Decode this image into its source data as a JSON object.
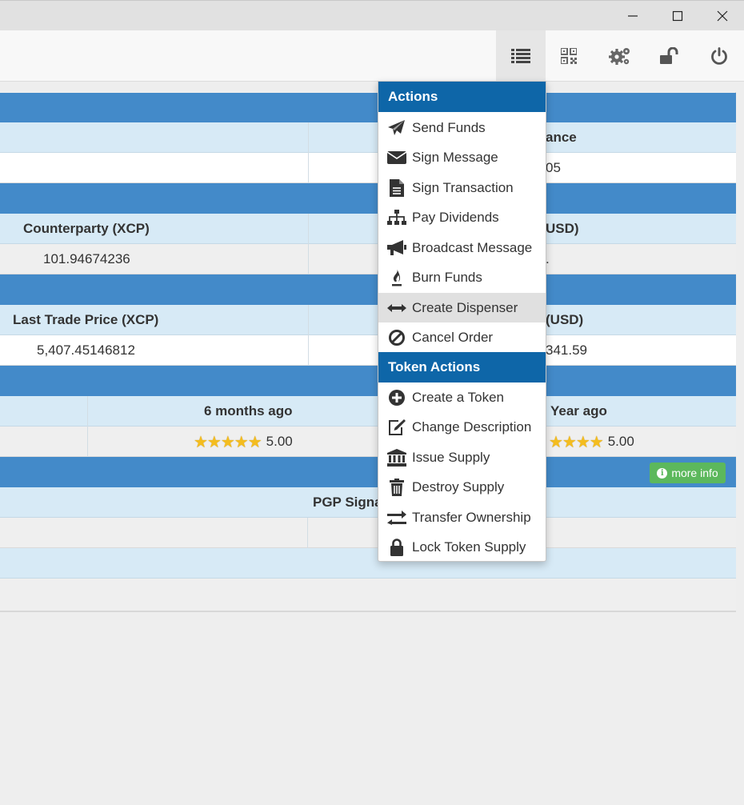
{
  "window": {
    "minimize_icon": "minimize-icon",
    "maximize_icon": "maximize-icon",
    "close_icon": "close-icon"
  },
  "toolbar": {
    "buttons": [
      {
        "name": "actions-menu-button",
        "icon": "list-icon",
        "active": true
      },
      {
        "name": "qr-code-button",
        "icon": "qr-code-icon"
      },
      {
        "name": "settings-button",
        "icon": "gears-icon"
      },
      {
        "name": "lock-button",
        "icon": "unlock-icon"
      },
      {
        "name": "power-button",
        "icon": "power-icon"
      }
    ]
  },
  "balance_panel": {
    "col_header_partial": "ance",
    "value_partial": "05"
  },
  "price_panel": {
    "left_header": "Counterparty (XCP)",
    "right_header_partial": "USD)",
    "left_value": "101.94674236",
    "right_value_partial": "."
  },
  "trade_panel": {
    "left_header": "Last Trade Price (XCP)",
    "right_header_partial": "(USD)",
    "left_value": "5,407.45146812",
    "right_value_partial": "341.59"
  },
  "rating_panel": {
    "mid_header": "6 months ago",
    "right_header_partial": "Year ago",
    "mid_stars": "★★★★★",
    "mid_value": "5.00",
    "right_stars": "★★★★",
    "right_value": "5.00"
  },
  "info_panel": {
    "more_info_label": "more info",
    "mid_header_partial": "PGP Signa"
  },
  "menu": {
    "actions_header": "Actions",
    "actions": [
      {
        "label": "Send Funds",
        "icon": "paper-plane-icon"
      },
      {
        "label": "Sign Message",
        "icon": "envelope-icon"
      },
      {
        "label": "Sign Transaction",
        "icon": "document-icon"
      },
      {
        "label": "Pay Dividends",
        "icon": "sitemap-icon"
      },
      {
        "label": "Broadcast Message",
        "icon": "bullhorn-icon"
      },
      {
        "label": "Burn Funds",
        "icon": "fire-icon"
      },
      {
        "label": "Create Dispenser",
        "icon": "arrows-horizontal-icon",
        "hover": true
      },
      {
        "label": "Cancel Order",
        "icon": "ban-icon"
      }
    ],
    "token_header": "Token Actions",
    "token_actions": [
      {
        "label": "Create a Token",
        "icon": "plus-circle-icon"
      },
      {
        "label": "Change Description",
        "icon": "edit-icon"
      },
      {
        "label": "Issue Supply",
        "icon": "bank-icon"
      },
      {
        "label": "Destroy Supply",
        "icon": "trash-icon"
      },
      {
        "label": "Transfer Ownership",
        "icon": "exchange-icon"
      },
      {
        "label": "Lock Token Supply",
        "icon": "lock-icon"
      }
    ]
  },
  "colors": {
    "panel_header": "#438ac9",
    "subheader": "#d7eaf6",
    "menu_header": "#0e66a8",
    "more_info": "#5cb85c",
    "star": "#f4bd1e"
  }
}
